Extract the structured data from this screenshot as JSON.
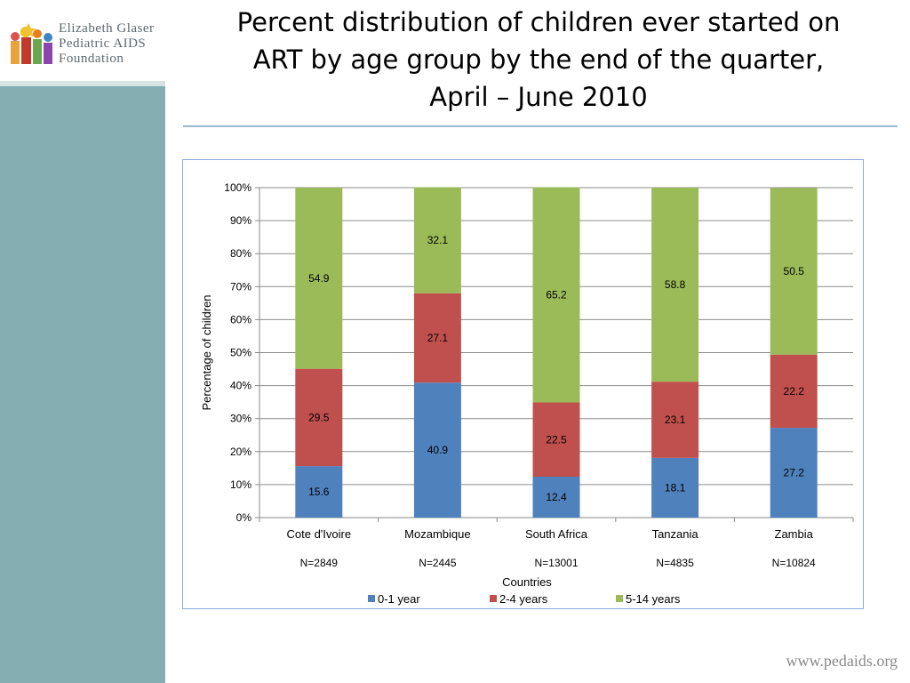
{
  "slide": {
    "title_lines": [
      "Percent distribution of children ever started on",
      "ART by age group by the end of the quarter,",
      "April – June 2010"
    ],
    "footer_url": "www.pedaids.org",
    "logo_lines": [
      "Elizabeth Glaser",
      "Pediatric AIDS",
      "Foundation"
    ]
  },
  "colors": {
    "sidebar": "#84aeb2",
    "series_0_1": "#4f81bd",
    "series_2_4": "#c0504d",
    "series_5_14": "#9bbb59"
  },
  "chart_data": {
    "type": "bar",
    "stacked": true,
    "categories": [
      "Cote d'Ivoire",
      "Mozambique",
      "South Africa",
      "Tanzania",
      "Zambia"
    ],
    "sample_sizes": [
      "N=2849",
      "N=2445",
      "N=13001",
      "N=4835",
      "N=10824"
    ],
    "series": [
      {
        "name": "0-1 year",
        "values": [
          15.6,
          40.9,
          12.4,
          18.1,
          27.2
        ],
        "color": "#4f81bd"
      },
      {
        "name": "2-4 years",
        "values": [
          29.5,
          27.1,
          22.5,
          23.1,
          22.2
        ],
        "color": "#c0504d"
      },
      {
        "name": "5-14 years",
        "values": [
          54.9,
          32.1,
          65.2,
          58.8,
          50.5
        ],
        "color": "#9bbb59"
      }
    ],
    "xlabel": "Countries",
    "ylabel": "Percentage of children",
    "ylim": [
      0,
      100
    ],
    "yticks": [
      "0%",
      "10%",
      "20%",
      "30%",
      "40%",
      "50%",
      "60%",
      "70%",
      "80%",
      "90%",
      "100%"
    ],
    "grid": true,
    "legend_position": "bottom"
  }
}
